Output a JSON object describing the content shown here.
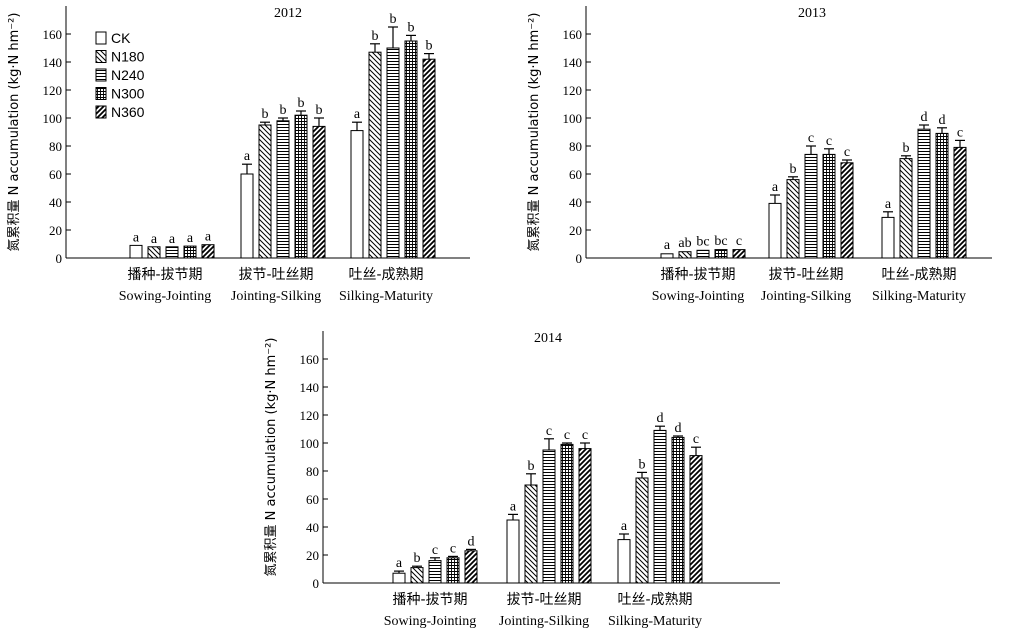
{
  "chart_data": [
    {
      "type": "bar",
      "title": "2012",
      "ylabel": "氮累积量 N accumulation (kg·N hm⁻²)",
      "ylim": [
        0,
        180
      ],
      "yticks": [
        0,
        20,
        40,
        60,
        80,
        100,
        120,
        140,
        160
      ],
      "categories": [
        "播种-拔节期",
        "拔节-吐丝期",
        "吐丝-成熟期"
      ],
      "categories_en": [
        "Sowing-Jointing",
        "Jointing-Silking",
        "Silking-Maturity"
      ],
      "legend_position": "top-left",
      "series": [
        {
          "name": "CK",
          "values": [
            9,
            60,
            91
          ],
          "errors": [
            0,
            7,
            6
          ],
          "letters": [
            "a",
            "a",
            "a"
          ]
        },
        {
          "name": "N180",
          "values": [
            8,
            95,
            147
          ],
          "errors": [
            0,
            2,
            6
          ],
          "letters": [
            "a",
            "b",
            "b"
          ]
        },
        {
          "name": "N240",
          "values": [
            8,
            98,
            150
          ],
          "errors": [
            0,
            2,
            15
          ],
          "letters": [
            "a",
            "b",
            "b"
          ]
        },
        {
          "name": "N300",
          "values": [
            8.5,
            102,
            155
          ],
          "errors": [
            0,
            3,
            4
          ],
          "letters": [
            "a",
            "b",
            "b"
          ]
        },
        {
          "name": "N360",
          "values": [
            9.5,
            94,
            142
          ],
          "errors": [
            0,
            6,
            4
          ],
          "letters": [
            "a",
            "b",
            "b"
          ]
        }
      ]
    },
    {
      "type": "bar",
      "title": "2013",
      "ylabel": "氮累积量 N accumulation (kg·N hm⁻²)",
      "ylim": [
        0,
        180
      ],
      "yticks": [
        0,
        20,
        40,
        60,
        80,
        100,
        120,
        140,
        160
      ],
      "categories": [
        "播种-拔节期",
        "拔节-吐丝期",
        "吐丝-成熟期"
      ],
      "categories_en": [
        "Sowing-Jointing",
        "Jointing-Silking",
        "Silking-Maturity"
      ],
      "series": [
        {
          "name": "CK",
          "values": [
            3,
            39,
            29
          ],
          "errors": [
            0.5,
            6,
            4
          ],
          "letters": [
            "a",
            "a",
            "a"
          ]
        },
        {
          "name": "N180",
          "values": [
            4.5,
            56,
            71
          ],
          "errors": [
            0.5,
            2,
            2
          ],
          "letters": [
            "ab",
            "b",
            "b"
          ]
        },
        {
          "name": "N240",
          "values": [
            5.5,
            74,
            92
          ],
          "errors": [
            0.5,
            6,
            3
          ],
          "letters": [
            "bc",
            "c",
            "d"
          ]
        },
        {
          "name": "N300",
          "values": [
            6,
            74,
            89
          ],
          "errors": [
            0.5,
            4,
            4
          ],
          "letters": [
            "bc",
            "c",
            "d"
          ]
        },
        {
          "name": "N360",
          "values": [
            6,
            68,
            79
          ],
          "errors": [
            0.5,
            2,
            5
          ],
          "letters": [
            "c",
            "c",
            "c"
          ]
        }
      ]
    },
    {
      "type": "bar",
      "title": "2014",
      "ylabel": "氮累积量 N accumulation (kg·N hm⁻²)",
      "ylim": [
        0,
        180
      ],
      "yticks": [
        0,
        20,
        40,
        60,
        80,
        100,
        120,
        140,
        160
      ],
      "categories": [
        "播种-拔节期",
        "拔节-吐丝期",
        "吐丝-成熟期"
      ],
      "categories_en": [
        "Sowing-Jointing",
        "Jointing-Silking",
        "Silking-Maturity"
      ],
      "series": [
        {
          "name": "CK",
          "values": [
            7,
            45,
            31
          ],
          "errors": [
            1.5,
            4,
            4
          ],
          "letters": [
            "a",
            "a",
            "a"
          ]
        },
        {
          "name": "N180",
          "values": [
            11,
            70,
            75
          ],
          "errors": [
            1,
            8,
            4
          ],
          "letters": [
            "b",
            "b",
            "b"
          ]
        },
        {
          "name": "N240",
          "values": [
            16,
            95,
            109
          ],
          "errors": [
            2,
            8,
            3
          ],
          "letters": [
            "c",
            "c",
            "d"
          ]
        },
        {
          "name": "N300",
          "values": [
            18,
            99,
            104
          ],
          "errors": [
            1,
            1,
            1
          ],
          "letters": [
            "c",
            "c",
            "d"
          ]
        },
        {
          "name": "N360",
          "values": [
            23,
            96,
            91
          ],
          "errors": [
            1,
            4,
            6
          ],
          "letters": [
            "d",
            "c",
            "c"
          ]
        }
      ]
    }
  ]
}
